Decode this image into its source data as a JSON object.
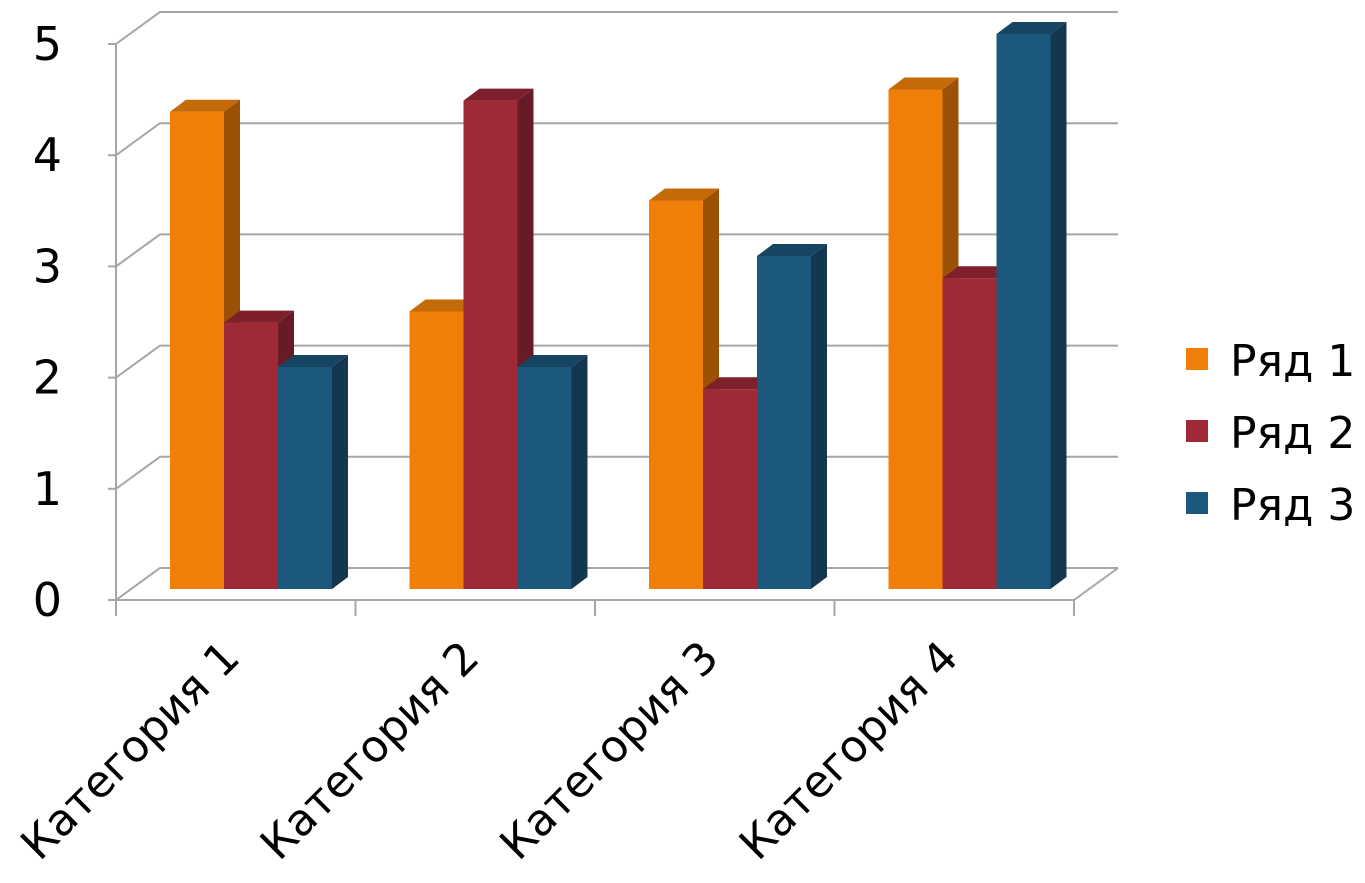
{
  "chart_data": {
    "type": "bar",
    "categories": [
      "Категория 1",
      "Категория 2",
      "Категория 3",
      "Категория 4"
    ],
    "series": [
      {
        "name": "Ряд 1",
        "values": [
          4.3,
          2.5,
          3.5,
          4.5
        ],
        "color": "#f07f09",
        "side_color": "#9c5206",
        "top_color": "#c46a08"
      },
      {
        "name": "Ряд 2",
        "values": [
          2.4,
          4.4,
          1.8,
          2.8
        ],
        "color": "#9f2936",
        "side_color": "#671b24",
        "top_color": "#7e202b"
      },
      {
        "name": "Ряд 3",
        "values": [
          2,
          2,
          3,
          5
        ],
        "color": "#1b587c",
        "side_color": "#12374f",
        "top_color": "#154563"
      }
    ],
    "y_ticks": [
      "0",
      "1",
      "2",
      "3",
      "4",
      "5"
    ],
    "ylim": [
      0,
      5
    ],
    "title": "",
    "xlabel": "",
    "ylabel": "",
    "grid": true,
    "legend_position": "right",
    "three_d": true,
    "gridline_color": "#a6a6a6"
  }
}
